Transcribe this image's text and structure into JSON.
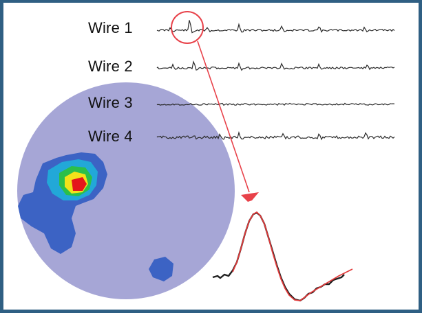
{
  "wires": [
    {
      "label": "Wire 1"
    },
    {
      "label": "Wire 2"
    },
    {
      "label": "Wire 3"
    },
    {
      "label": "Wire 4"
    }
  ],
  "colors": {
    "frame": "#2f5f83",
    "place_field_disc": "#a6a6d6",
    "field_low": "#3c63c4",
    "field_mid": "#22a8d8",
    "field_green": "#2bbf4a",
    "field_yellow": "#f2e21a",
    "field_peak": "#e4161b",
    "highlight": "#e8424a",
    "trace": "#2a2a2a",
    "waveform_mean": "#e23a3a"
  }
}
